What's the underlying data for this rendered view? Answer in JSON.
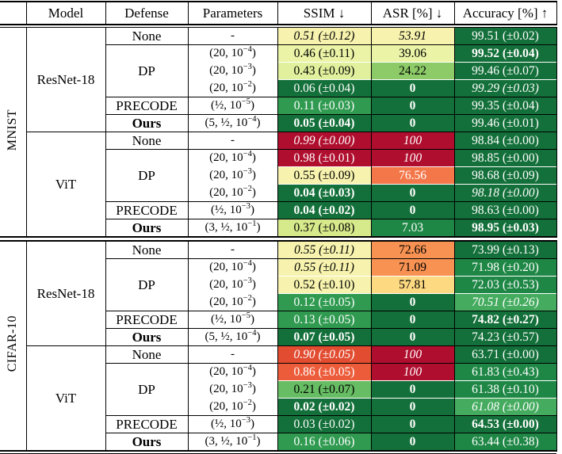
{
  "table": {
    "columns": [
      {
        "label": ""
      },
      {
        "label": "Model"
      },
      {
        "label": "Defense"
      },
      {
        "label": "Parameters"
      },
      {
        "label": "SSIM ↓"
      },
      {
        "label": "ASR [%] ↓"
      },
      {
        "label": "Accuracy [%] ↑"
      }
    ],
    "palette": {
      "g4": {
        "bg": "#14703a",
        "fg": "#ffffff"
      },
      "g3": {
        "bg": "#1f8746",
        "fg": "#ffffff"
      },
      "g2": {
        "bg": "#2f9a50",
        "fg": "#ffffff"
      },
      "gL": {
        "bg": "#44ab5f",
        "fg": "#ffffff"
      },
      "gXL": {
        "bg": "#66bd63",
        "fg": "#000000"
      },
      "mg": {
        "bg": "#8ccb67",
        "fg": "#000000"
      },
      "yg": {
        "bg": "#d7ea8b",
        "fg": "#000000"
      },
      "y3": {
        "bg": "#e0f09c",
        "fg": "#000000"
      },
      "y2": {
        "bg": "#eaf3a6",
        "fg": "#000000"
      },
      "y1": {
        "bg": "#f7f3ae",
        "fg": "#000000"
      },
      "ylo": {
        "bg": "#fdd981",
        "fg": "#000000"
      },
      "or1": {
        "bg": "#f79252",
        "fg": "#000000"
      },
      "or2": {
        "bg": "#f4774a",
        "fg": "#ffffff"
      },
      "ro2": {
        "bg": "#ec5c3a",
        "fg": "#ffffff"
      },
      "ro1": {
        "bg": "#e24c31",
        "fg": "#ffffff"
      },
      "red": {
        "bg": "#b00e2e",
        "fg": "#ffffff"
      }
    },
    "sections": [
      {
        "dataset": "MNIST",
        "models": [
          {
            "name": "ResNet-18",
            "groups": [
              {
                "defense": "None",
                "rows": [
                  {
                    "params": "-",
                    "ssim": {
                      "t": "0.51 (±0.12)",
                      "tone": "y1",
                      "em": "i"
                    },
                    "asr": {
                      "t": "53.91",
                      "tone": "y1",
                      "em": "i"
                    },
                    "acc": {
                      "t": "99.51 (±0.02)",
                      "tone": "g4"
                    }
                  }
                ]
              },
              {
                "defense": "DP",
                "rows": [
                  {
                    "params": "(20, 10^-4)",
                    "ssim": {
                      "t": "0.46 (±0.11)",
                      "tone": "y2"
                    },
                    "asr": {
                      "t": "39.06",
                      "tone": "y2"
                    },
                    "acc": {
                      "t": "99.52 (±0.04)",
                      "tone": "g4",
                      "em": "b"
                    }
                  },
                  {
                    "params": "(20, 10^-3)",
                    "ssim": {
                      "t": "0.43 (±0.09)",
                      "tone": "y3"
                    },
                    "asr": {
                      "t": "24.22",
                      "tone": "mg"
                    },
                    "acc": {
                      "t": "99.46 (±0.07)",
                      "tone": "g4"
                    }
                  },
                  {
                    "params": "(20, 10^-2)",
                    "ssim": {
                      "t": "0.06 (±0.04)",
                      "tone": "g4"
                    },
                    "asr": {
                      "t": "0",
                      "tone": "g4",
                      "em": "b"
                    },
                    "acc": {
                      "t": "99.29 (±0.03)",
                      "tone": "g4",
                      "em": "i"
                    }
                  }
                ]
              },
              {
                "defense": "PRECODE",
                "rows": [
                  {
                    "params": "(1/2, 10^-5)",
                    "ssim": {
                      "t": "0.11 (±0.03)",
                      "tone": "g2"
                    },
                    "asr": {
                      "t": "0",
                      "tone": "g4",
                      "em": "b"
                    },
                    "acc": {
                      "t": "99.35 (±0.04)",
                      "tone": "g4"
                    }
                  }
                ]
              },
              {
                "defense": "Ours",
                "bold": true,
                "rows": [
                  {
                    "params": "(5, 1/2, 10^-4)",
                    "ssim": {
                      "t": "0.05 (±0.04)",
                      "tone": "g4",
                      "em": "b"
                    },
                    "asr": {
                      "t": "0",
                      "tone": "g4",
                      "em": "b"
                    },
                    "acc": {
                      "t": "99.46 (±0.01)",
                      "tone": "g4"
                    }
                  }
                ]
              }
            ]
          },
          {
            "name": "ViT",
            "groups": [
              {
                "defense": "None",
                "rows": [
                  {
                    "params": "-",
                    "ssim": {
                      "t": "0.99 (±0.00)",
                      "tone": "red",
                      "em": "i"
                    },
                    "asr": {
                      "t": "100",
                      "tone": "red",
                      "em": "i"
                    },
                    "acc": {
                      "t": "98.84 (±0.00)",
                      "tone": "g4"
                    }
                  }
                ]
              },
              {
                "defense": "DP",
                "rows": [
                  {
                    "params": "(20, 10^-4)",
                    "ssim": {
                      "t": "0.98 (±0.01)",
                      "tone": "red"
                    },
                    "asr": {
                      "t": "100",
                      "tone": "red",
                      "em": "i"
                    },
                    "acc": {
                      "t": "98.85 (±0.00)",
                      "tone": "g4"
                    }
                  },
                  {
                    "params": "(20, 10^-3)",
                    "ssim": {
                      "t": "0.55 (±0.09)",
                      "tone": "y1"
                    },
                    "asr": {
                      "t": "76.56",
                      "tone": "or2"
                    },
                    "acc": {
                      "t": "98.68 (±0.09)",
                      "tone": "g4"
                    }
                  },
                  {
                    "params": "(20, 10^-2)",
                    "ssim": {
                      "t": "0.04 (±0.03)",
                      "tone": "g4",
                      "em": "b"
                    },
                    "asr": {
                      "t": "0",
                      "tone": "g4",
                      "em": "b"
                    },
                    "acc": {
                      "t": "98.18 (±0.00)",
                      "tone": "g4",
                      "em": "i"
                    }
                  }
                ]
              },
              {
                "defense": "PRECODE",
                "rows": [
                  {
                    "params": "(1/2, 10^-3)",
                    "ssim": {
                      "t": "0.04 (±0.02)",
                      "tone": "g4",
                      "em": "b"
                    },
                    "asr": {
                      "t": "0",
                      "tone": "g4",
                      "em": "b"
                    },
                    "acc": {
                      "t": "98.63 (±0.00)",
                      "tone": "g4"
                    }
                  }
                ]
              },
              {
                "defense": "Ours",
                "bold": true,
                "rows": [
                  {
                    "params": "(3, 1/2, 10^-1)",
                    "ssim": {
                      "t": "0.37 (±0.08)",
                      "tone": "yg"
                    },
                    "asr": {
                      "t": "7.03",
                      "tone": "g3"
                    },
                    "acc": {
                      "t": "98.95 (±0.03)",
                      "tone": "g4",
                      "em": "b"
                    }
                  }
                ]
              }
            ]
          }
        ]
      },
      {
        "dataset": "CIFAR-10",
        "models": [
          {
            "name": "ResNet-18",
            "groups": [
              {
                "defense": "None",
                "rows": [
                  {
                    "params": "-",
                    "ssim": {
                      "t": "0.55 (±0.11)",
                      "tone": "y1",
                      "em": "i"
                    },
                    "asr": {
                      "t": "72.66",
                      "tone": "or1"
                    },
                    "acc": {
                      "t": "73.99 (±0.13)",
                      "tone": "g4"
                    }
                  }
                ]
              },
              {
                "defense": "DP",
                "rows": [
                  {
                    "params": "(20, 10^-4)",
                    "ssim": {
                      "t": "0.55 (±0.11)",
                      "tone": "y1",
                      "em": "i"
                    },
                    "asr": {
                      "t": "71.09",
                      "tone": "or1"
                    },
                    "acc": {
                      "t": "71.98 (±0.20)",
                      "tone": "g3"
                    }
                  },
                  {
                    "params": "(20, 10^-3)",
                    "ssim": {
                      "t": "0.52 (±0.10)",
                      "tone": "y1"
                    },
                    "asr": {
                      "t": "57.81",
                      "tone": "ylo"
                    },
                    "acc": {
                      "t": "72.03 (±0.53)",
                      "tone": "g3"
                    }
                  },
                  {
                    "params": "(20, 10^-2)",
                    "ssim": {
                      "t": "0.12 (±0.05)",
                      "tone": "g2"
                    },
                    "asr": {
                      "t": "0",
                      "tone": "g4",
                      "em": "b"
                    },
                    "acc": {
                      "t": "70.51 (±0.26)",
                      "tone": "gL",
                      "em": "i"
                    }
                  }
                ]
              },
              {
                "defense": "PRECODE",
                "rows": [
                  {
                    "params": "(1/2, 10^-5)",
                    "ssim": {
                      "t": "0.13 (±0.05)",
                      "tone": "g2"
                    },
                    "asr": {
                      "t": "0",
                      "tone": "g4",
                      "em": "b"
                    },
                    "acc": {
                      "t": "74.82 (±0.27)",
                      "tone": "g4",
                      "em": "b"
                    }
                  }
                ]
              },
              {
                "defense": "Ours",
                "bold": true,
                "rows": [
                  {
                    "params": "(5, 1/2, 10^-4)",
                    "ssim": {
                      "t": "0.07 (±0.05)",
                      "tone": "g4",
                      "em": "b"
                    },
                    "asr": {
                      "t": "0",
                      "tone": "g4",
                      "em": "b"
                    },
                    "acc": {
                      "t": "74.23 (±0.57)",
                      "tone": "g4"
                    }
                  }
                ]
              }
            ]
          },
          {
            "name": "ViT",
            "groups": [
              {
                "defense": "None",
                "rows": [
                  {
                    "params": "-",
                    "ssim": {
                      "t": "0.90 (±0.05)",
                      "tone": "ro1",
                      "em": "i"
                    },
                    "asr": {
                      "t": "100",
                      "tone": "red",
                      "em": "i"
                    },
                    "acc": {
                      "t": "63.71 (±0.00)",
                      "tone": "g4"
                    }
                  }
                ]
              },
              {
                "defense": "DP",
                "rows": [
                  {
                    "params": "(20, 10^-4)",
                    "ssim": {
                      "t": "0.86 (±0.05)",
                      "tone": "ro2"
                    },
                    "asr": {
                      "t": "100",
                      "tone": "red",
                      "em": "i"
                    },
                    "acc": {
                      "t": "61.83 (±0.43)",
                      "tone": "g3"
                    }
                  },
                  {
                    "params": "(20, 10^-3)",
                    "ssim": {
                      "t": "0.21 (±0.07)",
                      "tone": "gXL"
                    },
                    "asr": {
                      "t": "0",
                      "tone": "g4",
                      "em": "b"
                    },
                    "acc": {
                      "t": "61.38 (±0.10)",
                      "tone": "g3"
                    }
                  },
                  {
                    "params": "(20, 10^-2)",
                    "ssim": {
                      "t": "0.02 (±0.02)",
                      "tone": "g4",
                      "em": "b"
                    },
                    "asr": {
                      "t": "0",
                      "tone": "g4",
                      "em": "b"
                    },
                    "acc": {
                      "t": "61.08 (±0.00)",
                      "tone": "gL",
                      "em": "i"
                    }
                  }
                ]
              },
              {
                "defense": "PRECODE",
                "rows": [
                  {
                    "params": "(1/2, 10^-3)",
                    "ssim": {
                      "t": "0.03 (±0.02)",
                      "tone": "g4"
                    },
                    "asr": {
                      "t": "0",
                      "tone": "g4",
                      "em": "b"
                    },
                    "acc": {
                      "t": "64.53 (±0.00)",
                      "tone": "g4",
                      "em": "b"
                    }
                  }
                ]
              },
              {
                "defense": "Ours",
                "bold": true,
                "rows": [
                  {
                    "params": "(3, 1/2, 10^-1)",
                    "ssim": {
                      "t": "0.16 (±0.06)",
                      "tone": "g2"
                    },
                    "asr": {
                      "t": "0",
                      "tone": "g4",
                      "em": "b"
                    },
                    "acc": {
                      "t": "63.44 (±0.38)",
                      "tone": "g3"
                    }
                  }
                ]
              }
            ]
          }
        ]
      }
    ]
  }
}
